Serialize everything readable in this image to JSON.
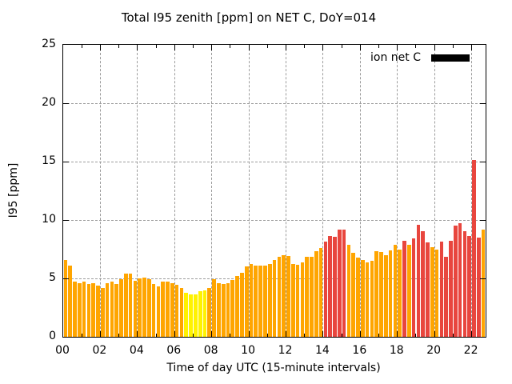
{
  "chart_data": {
    "type": "bar",
    "title": "Total I95 zenith [ppm] on NET C, DoY=014",
    "xlabel": "Time of day UTC (15-minute intervals)",
    "ylabel": "I95 [ppm]",
    "ylim": [
      0,
      25
    ],
    "xlim_hours": [
      0,
      22.75
    ],
    "grid": "dashed, at major ticks",
    "legend": {
      "label": "ion net C",
      "swatch_color": "#000000",
      "position": "top-right inside plot"
    },
    "x_major_tick_hours": [
      0,
      2,
      4,
      6,
      8,
      10,
      12,
      14,
      16,
      18,
      20,
      22
    ],
    "x_tick_labels": [
      "00",
      "02",
      "04",
      "06",
      "08",
      "10",
      "12",
      "14",
      "16",
      "18",
      "20",
      "22"
    ],
    "x_minor_tick_every_hours": 1,
    "y_ticks": [
      0,
      5,
      10,
      15,
      20,
      25
    ],
    "y_tick_labels": [
      "0",
      "5",
      "10",
      "15",
      "20",
      "25"
    ],
    "interval_minutes": 15,
    "start_time_utc": "00:00",
    "palette": {
      "o": "#FFA500",
      "y": "#FFF200",
      "r": "#E8463E"
    },
    "series": [
      {
        "name": "ion net C",
        "values": [
          6.6,
          6.1,
          4.7,
          4.6,
          4.7,
          4.5,
          4.6,
          4.4,
          4.2,
          4.6,
          4.7,
          4.5,
          4.9,
          5.4,
          5.4,
          4.8,
          5.0,
          5.1,
          4.9,
          4.5,
          4.3,
          4.7,
          4.7,
          4.6,
          4.45,
          4.15,
          3.8,
          3.65,
          3.65,
          3.9,
          3.95,
          4.2,
          4.9,
          4.6,
          4.5,
          4.6,
          4.85,
          5.2,
          5.5,
          6.0,
          6.2,
          6.1,
          6.1,
          6.1,
          6.25,
          6.55,
          6.85,
          7.0,
          6.95,
          6.2,
          6.15,
          6.4,
          6.85,
          6.85,
          7.3,
          7.6,
          8.15,
          8.65,
          8.55,
          9.2,
          9.2,
          7.85,
          7.2,
          6.8,
          6.55,
          6.4,
          6.5,
          7.35,
          7.25,
          7.0,
          7.4,
          7.9,
          7.5,
          8.2,
          7.85,
          8.4,
          9.6,
          9.05,
          8.1,
          7.7,
          7.45,
          8.15,
          6.85,
          8.2,
          9.5,
          9.75,
          9.05,
          8.6,
          15.15,
          8.5,
          9.15
        ],
        "color_codes": "ooooooooooooooooooooooooooyyyyyooooooooooooooooooooooooorrrrroooooooooooororrrroorrrrrrrrr"
      }
    ]
  }
}
